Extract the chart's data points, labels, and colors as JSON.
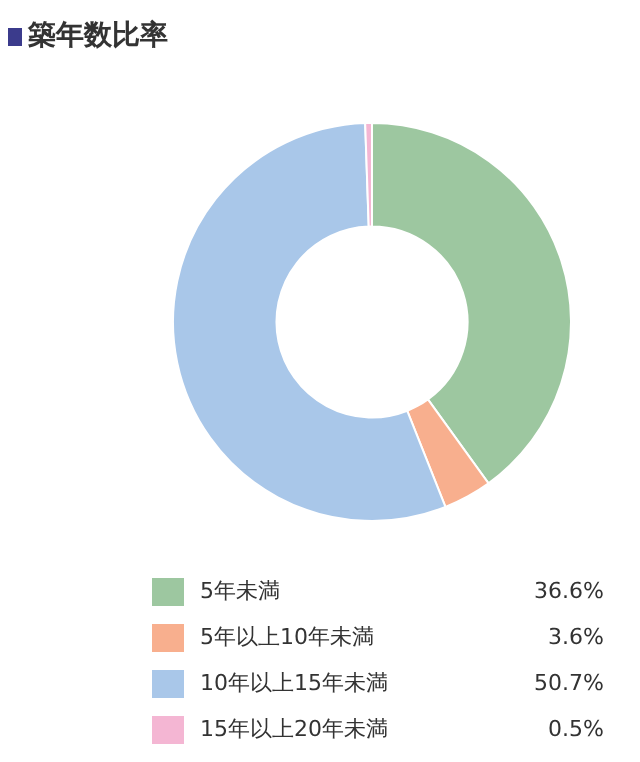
{
  "chart_data": {
    "type": "donut",
    "title": "築年数比率",
    "categories": [
      "5年未満",
      "5年以上10年未満",
      "10年以上15年未満",
      "15年以上20年未満"
    ],
    "values": [
      36.6,
      3.6,
      50.7,
      0.5
    ],
    "colors": [
      "#9dc7a0",
      "#f8af8e",
      "#a9c7e9",
      "#f4b6d3"
    ],
    "value_labels": [
      "36.6%",
      "3.6%",
      "50.7%",
      "0.5%"
    ],
    "legend": "bottom"
  }
}
